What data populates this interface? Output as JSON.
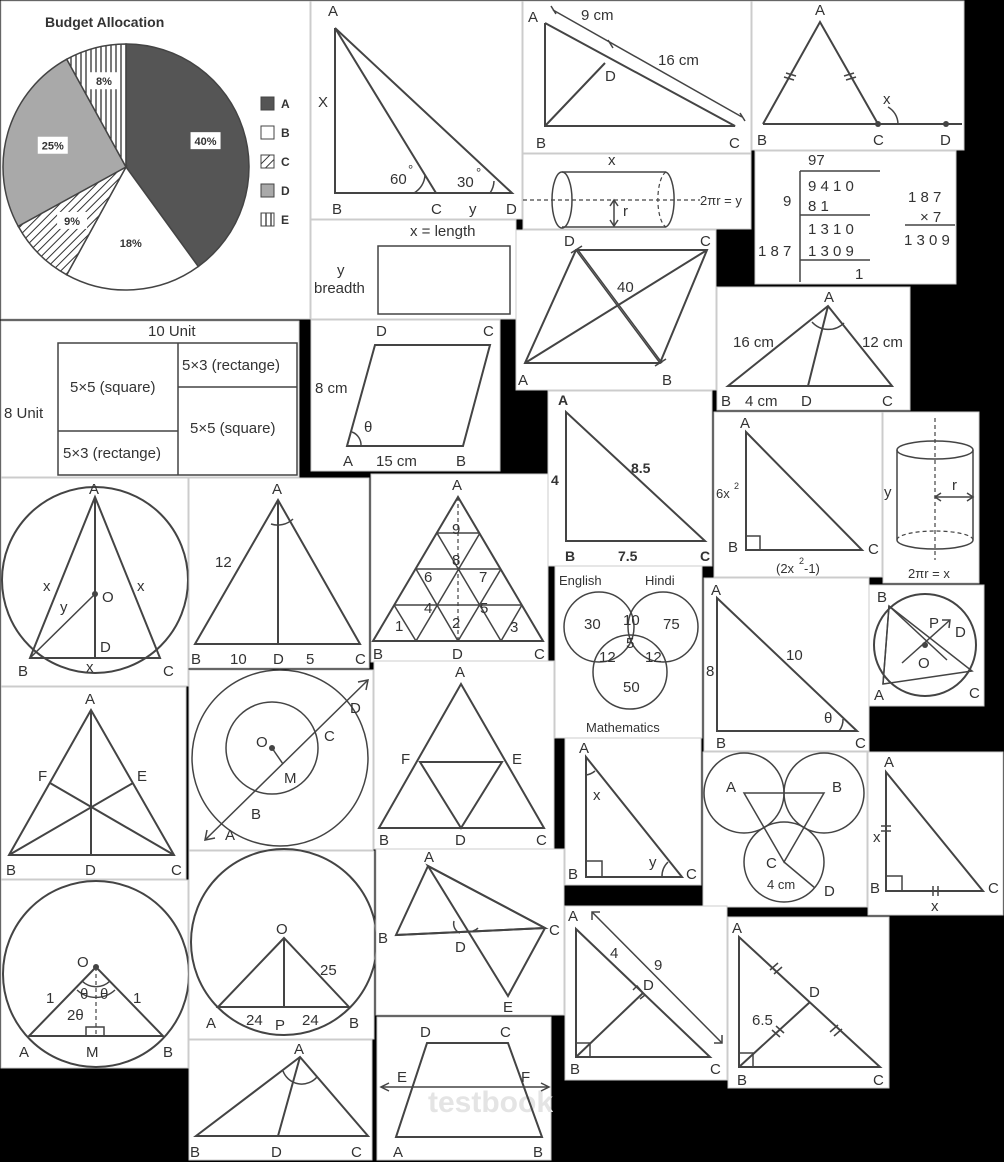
{
  "pie": {
    "title": "Budget Allocation",
    "colors": {
      "A": "#555555",
      "B": "#ffffff",
      "C": "hatch-diagonal",
      "D": "#a9a9a9",
      "E": "hatch-vertical"
    },
    "slices": [
      {
        "label": "A",
        "value": 40,
        "pct": "40%"
      },
      {
        "label": "B",
        "value": 18,
        "pct": "18%"
      },
      {
        "label": "C",
        "value": 9,
        "pct": "9%"
      },
      {
        "label": "D",
        "value": 25,
        "pct": "25%"
      },
      {
        "label": "E",
        "value": 8,
        "pct": "8%"
      }
    ]
  },
  "fig_tri_60_30": {
    "A": "A",
    "X": "X",
    "B": "B",
    "C": "C",
    "y": "y",
    "D": "D",
    "a60": "60",
    "a30": "30",
    "deg": "°"
  },
  "fig_seg": {
    "A": "A",
    "len1": "9 cm",
    "len2": "16 cm",
    "D": "D",
    "B": "B",
    "C": "C"
  },
  "fig_ext_angle": {
    "A": "A",
    "x": "x",
    "B": "B",
    "C": "C",
    "D": "D"
  },
  "fig_cyl_top": {
    "x": "x",
    "r": "r",
    "eq": "2πr = y"
  },
  "fig_division": {
    "quotient": "97",
    "divisor": "9",
    "dividend": "9 4 1 0",
    "s1": "8 1",
    "s2": "1 3 1 0",
    "d2": "1 8 7",
    "s3": "1 3 0 9",
    "rem": "1",
    "m1": "1 8 7",
    "m2": "× 7",
    "m3": "1 3 0 9"
  },
  "fig_rect": {
    "length": "x = length",
    "y": "y",
    "breadth": "breadth"
  },
  "fig_quad40": {
    "D": "D",
    "C": "C",
    "A": "A",
    "B": "B",
    "val": "40"
  },
  "fig_bisector": {
    "A": "A",
    "l16": "16 cm",
    "l12": "12 cm",
    "B": "B",
    "l4": "4 cm",
    "D": "D",
    "C": "C"
  },
  "fig_grid": {
    "top": "10 Unit",
    "side": "8 Unit",
    "c1": "5×5 (square)",
    "c2": "5×3 (rectange)",
    "c3": "5×5 (square)",
    "c4": "5×3 (rectange)"
  },
  "fig_para": {
    "D": "D",
    "C": "C",
    "side": "8 cm",
    "theta": "θ",
    "A": "A",
    "base": "15 cm",
    "B": "B"
  },
  "fig_rt_885": {
    "A": "A",
    "h": "4",
    "hyp": "8.5",
    "B": "B",
    "base": "7.5",
    "C": "C"
  },
  "fig_rt_6x": {
    "A": "A",
    "side": "6x",
    "sup": "2",
    "B": "B",
    "base1": "(2x",
    "base2": "-1)",
    "C": "C"
  },
  "fig_cyl_right": {
    "y": "y",
    "r": "r",
    "eq": "2πr = x"
  },
  "fig_circ_iso": {
    "A": "A",
    "x1": "x",
    "O": "O",
    "x2": "x",
    "y": "y",
    "D": "D",
    "B": "B",
    "x3": "x",
    "C": "C"
  },
  "fig_tri_12": {
    "A": "A",
    "side": "12",
    "B": "B",
    "b1": "10",
    "D": "D",
    "b2": "5",
    "C": "C"
  },
  "fig_tri_grid": {
    "A": "A",
    "n9": "9",
    "n8": "8",
    "n6": "6",
    "n7": "7",
    "n4": "4",
    "n5": "5",
    "n1": "1",
    "n2": "2",
    "n3": "3",
    "B": "B",
    "D": "D",
    "C": "C"
  },
  "venn3": {
    "eng": "English",
    "hin": "Hindi",
    "math": "Mathematics",
    "e": "30",
    "h": "75",
    "eh": "10",
    "all": "5",
    "em": "12",
    "hm": "12",
    "m": "50"
  },
  "fig_rt_810": {
    "A": "A",
    "h": "8",
    "hyp": "10",
    "theta": "θ",
    "B": "B",
    "C": "C"
  },
  "fig_circ_pd": {
    "B": "B",
    "P": "P",
    "D": "D",
    "O": "O",
    "A": "A",
    "C": "C"
  },
  "fig_medians": {
    "A": "A",
    "F": "F",
    "E": "E",
    "B": "B",
    "D": "D",
    "C": "C"
  },
  "fig_concentric": {
    "D": "D",
    "O": "O",
    "C": "C",
    "M": "M",
    "B": "B",
    "A": "A"
  },
  "fig_midtri": {
    "A": "A",
    "F": "F",
    "E": "E",
    "B": "B",
    "D": "D",
    "C": "C"
  },
  "fig_rt_xy": {
    "A": "A",
    "x": "x",
    "y": "y",
    "B": "B",
    "C": "C"
  },
  "fig_three_circles": {
    "A": "A",
    "B": "B",
    "C": "C",
    "r": "4 cm",
    "D": "D"
  },
  "fig_rt_eq": {
    "A": "A",
    "x1": "x",
    "B": "B",
    "x2": "x",
    "C": "C"
  },
  "fig_circ_theta": {
    "O": "O",
    "one1": "1",
    "one2": "1",
    "th1": "θ",
    "th2": "θ",
    "two": "2θ",
    "A": "A",
    "M": "M",
    "B": "B"
  },
  "fig_circ_chord": {
    "O": "O",
    "r": "25",
    "A": "A",
    "h1": "24",
    "P": "P",
    "h2": "24",
    "B": "B"
  },
  "fig_bowtie": {
    "A": "A",
    "B": "B",
    "D": "D",
    "C": "C",
    "E": "E"
  },
  "fig_rt_49": {
    "A": "A",
    "l4": "4",
    "l9": "9",
    "D": "D",
    "B": "B",
    "C": "C"
  },
  "fig_rt_65": {
    "A": "A",
    "D": "D",
    "val": "6.5",
    "B": "B",
    "C": "C"
  },
  "fig_bottom_tri": {
    "A": "A",
    "B": "B",
    "D": "D",
    "C": "C"
  },
  "fig_trap": {
    "D": "D",
    "C": "C",
    "E": "E",
    "F": "F",
    "A": "A",
    "B": "B",
    "wm": "testbook"
  }
}
